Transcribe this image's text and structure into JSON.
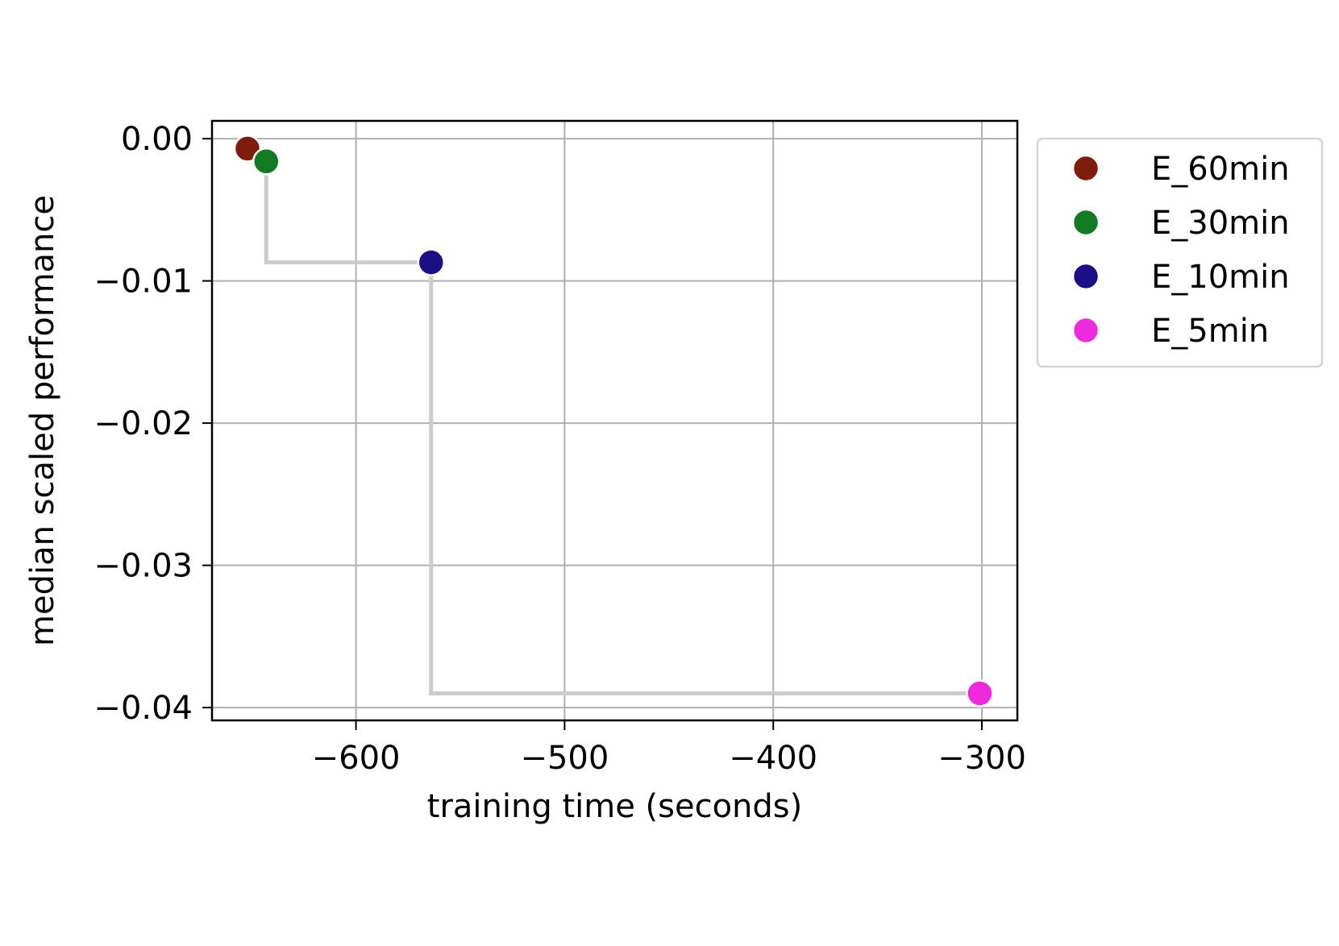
{
  "chart_data": {
    "type": "scatter",
    "xlabel": "training time (seconds)",
    "ylabel": "median scaled performance",
    "xlim": [
      -669,
      -283
    ],
    "ylim": [
      -0.0409,
      0.00125
    ],
    "x_ticks": [
      -600,
      -500,
      -400,
      -300
    ],
    "x_tick_labels": [
      "−600",
      "−500",
      "−400",
      "−300"
    ],
    "y_ticks": [
      0.0,
      -0.01,
      -0.02,
      -0.03,
      -0.04
    ],
    "y_tick_labels": [
      "0.00",
      "−0.01",
      "−0.02",
      "−0.03",
      "−0.04"
    ],
    "grid": true,
    "legend_position": "outside-right-top",
    "series": [
      {
        "name": "E_60min",
        "color": "#7f1d0d",
        "x": -652,
        "y": -0.0007
      },
      {
        "name": "E_30min",
        "color": "#117a22",
        "x": -643,
        "y": -0.0016
      },
      {
        "name": "E_10min",
        "color": "#1c0f85",
        "x": -564,
        "y": -0.0087
      },
      {
        "name": "E_5min",
        "color": "#ee2bdc",
        "x": -301,
        "y": -0.039
      }
    ],
    "pareto_front": {
      "color": "#cccccc",
      "points": [
        [
          -643,
          -0.0016
        ],
        [
          -643,
          -0.0087
        ],
        [
          -564,
          -0.0087
        ],
        [
          -564,
          -0.039
        ],
        [
          -301,
          -0.039
        ]
      ]
    }
  }
}
